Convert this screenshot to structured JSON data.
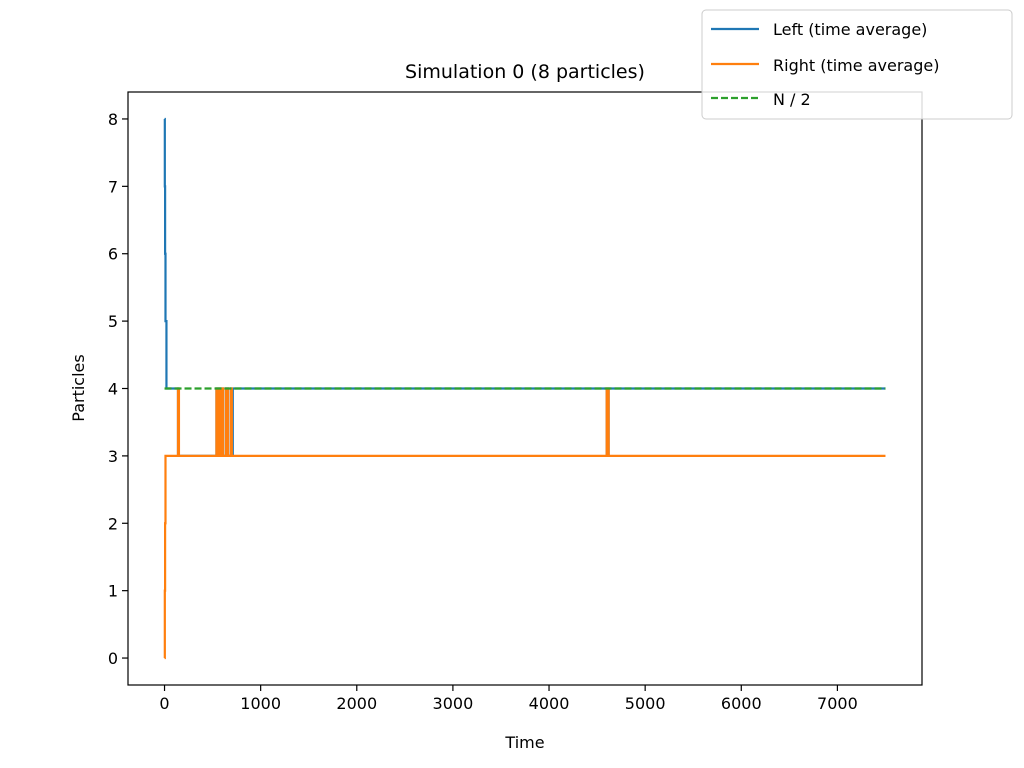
{
  "chart_data": {
    "type": "line",
    "title": "Simulation 0 (8 particles)",
    "xlabel": "Time",
    "ylabel": "Particles",
    "xlim": [
      -380,
      7880
    ],
    "ylim": [
      -0.4,
      8.4
    ],
    "xticks": [
      0,
      1000,
      2000,
      3000,
      4000,
      5000,
      6000,
      7000
    ],
    "yticks": [
      0,
      1,
      2,
      3,
      4,
      5,
      6,
      7,
      8
    ],
    "grid": false,
    "legend_position": "top-right",
    "series": [
      {
        "name": "Left (time average)",
        "color": "#1f77b4",
        "dash": "solid",
        "points": [
          [
            0,
            8
          ],
          [
            3,
            8
          ],
          [
            3,
            7
          ],
          [
            6,
            7
          ],
          [
            6,
            6
          ],
          [
            10,
            6
          ],
          [
            10,
            5
          ],
          [
            20,
            5
          ],
          [
            20,
            4
          ],
          [
            140,
            4
          ],
          [
            140,
            3
          ],
          [
            540,
            3
          ],
          [
            540,
            4
          ],
          [
            550,
            4
          ],
          [
            550,
            3
          ],
          [
            570,
            3
          ],
          [
            570,
            4
          ],
          [
            580,
            4
          ],
          [
            580,
            3
          ],
          [
            600,
            3
          ],
          [
            600,
            4
          ],
          [
            610,
            4
          ],
          [
            610,
            3
          ],
          [
            640,
            3
          ],
          [
            640,
            4
          ],
          [
            660,
            4
          ],
          [
            660,
            3
          ],
          [
            690,
            3
          ],
          [
            690,
            4
          ],
          [
            700,
            4
          ],
          [
            700,
            3
          ],
          [
            710,
            3
          ],
          [
            710,
            4
          ],
          [
            4600,
            4
          ],
          [
            4600,
            3
          ],
          [
            4620,
            3
          ],
          [
            4620,
            4
          ],
          [
            7500,
            4
          ]
        ]
      },
      {
        "name": "Right (time average)",
        "color": "#ff7f0e",
        "dash": "solid",
        "points": [
          [
            0,
            0
          ],
          [
            3,
            0
          ],
          [
            3,
            1
          ],
          [
            6,
            1
          ],
          [
            6,
            2
          ],
          [
            10,
            2
          ],
          [
            10,
            3
          ],
          [
            140,
            3
          ],
          [
            140,
            4
          ],
          [
            150,
            4
          ],
          [
            150,
            3
          ],
          [
            540,
            3
          ],
          [
            540,
            4
          ],
          [
            550,
            4
          ],
          [
            550,
            3
          ],
          [
            570,
            3
          ],
          [
            570,
            4
          ],
          [
            580,
            4
          ],
          [
            580,
            3
          ],
          [
            600,
            3
          ],
          [
            600,
            4
          ],
          [
            610,
            4
          ],
          [
            610,
            3
          ],
          [
            640,
            3
          ],
          [
            640,
            4
          ],
          [
            660,
            4
          ],
          [
            660,
            3
          ],
          [
            690,
            3
          ],
          [
            690,
            4
          ],
          [
            700,
            4
          ],
          [
            700,
            3
          ],
          [
            4600,
            3
          ],
          [
            4600,
            4
          ],
          [
            4620,
            4
          ],
          [
            4620,
            3
          ],
          [
            7500,
            3
          ]
        ]
      },
      {
        "name": "N / 2",
        "color": "#2ca02c",
        "dash": "dashed",
        "points": [
          [
            0,
            4
          ],
          [
            7500,
            4
          ]
        ]
      }
    ]
  }
}
